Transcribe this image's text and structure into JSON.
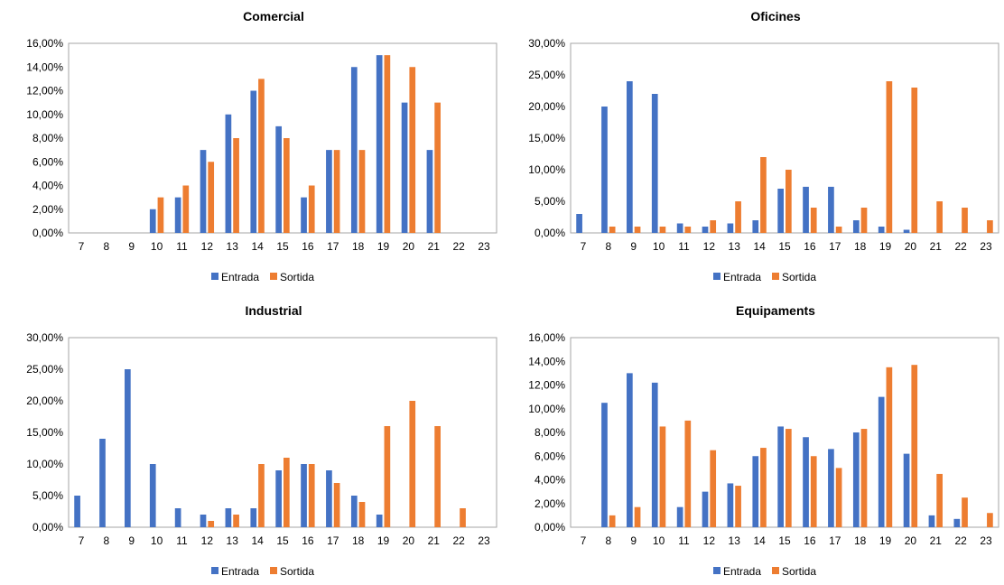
{
  "legend": {
    "entrada": "Entrada",
    "sortida": "Sortida"
  },
  "colors": {
    "entrada": "#4472C4",
    "sortida": "#ED7D31"
  },
  "chart_data": [
    {
      "type": "bar",
      "title": "Comercial",
      "categories": [
        "7",
        "8",
        "9",
        "10",
        "11",
        "12",
        "13",
        "14",
        "15",
        "16",
        "17",
        "18",
        "19",
        "20",
        "21",
        "22",
        "23"
      ],
      "ylim": [
        0,
        16
      ],
      "yticks": [
        0,
        2,
        4,
        6,
        8,
        10,
        12,
        14,
        16
      ],
      "ytick_labels": [
        "0,00%",
        "2,00%",
        "4,00%",
        "6,00%",
        "8,00%",
        "10,00%",
        "12,00%",
        "14,00%",
        "16,00%"
      ],
      "grid": false,
      "legend": "bottom",
      "series": [
        {
          "name": "Entrada",
          "values": [
            0,
            0,
            0,
            2,
            3,
            7,
            10,
            12,
            9,
            3,
            7,
            14,
            15,
            11,
            7,
            0,
            0
          ]
        },
        {
          "name": "Sortida",
          "values": [
            0,
            0,
            0,
            3,
            4,
            6,
            8,
            13,
            8,
            4,
            7,
            7,
            15,
            14,
            11,
            0,
            0
          ]
        }
      ]
    },
    {
      "type": "bar",
      "title": "Oficines",
      "categories": [
        "7",
        "8",
        "9",
        "10",
        "11",
        "12",
        "13",
        "14",
        "15",
        "16",
        "17",
        "18",
        "19",
        "20",
        "21",
        "22",
        "23"
      ],
      "ylim": [
        0,
        30
      ],
      "yticks": [
        0,
        5,
        10,
        15,
        20,
        25,
        30
      ],
      "ytick_labels": [
        "0,00%",
        "5,00%",
        "10,00%",
        "15,00%",
        "20,00%",
        "25,00%",
        "30,00%"
      ],
      "grid": false,
      "legend": "bottom",
      "series": [
        {
          "name": "Entrada",
          "values": [
            3,
            20,
            24,
            22,
            1.5,
            1,
            1.5,
            2,
            7,
            7.3,
            7.3,
            2,
            1,
            0.5,
            0,
            0,
            0
          ]
        },
        {
          "name": "Sortida",
          "values": [
            0,
            1,
            1,
            1,
            1,
            2,
            5,
            12,
            10,
            4,
            1,
            4,
            24,
            23,
            5,
            4,
            2
          ]
        }
      ]
    },
    {
      "type": "bar",
      "title": "Industrial",
      "categories": [
        "7",
        "8",
        "9",
        "10",
        "11",
        "12",
        "13",
        "14",
        "15",
        "16",
        "17",
        "18",
        "19",
        "20",
        "21",
        "22",
        "23"
      ],
      "ylim": [
        0,
        30
      ],
      "yticks": [
        0,
        5,
        10,
        15,
        20,
        25,
        30
      ],
      "ytick_labels": [
        "0,00%",
        "5,00%",
        "10,00%",
        "15,00%",
        "20,00%",
        "25,00%",
        "30,00%"
      ],
      "grid": false,
      "legend": "bottom",
      "series": [
        {
          "name": "Entrada",
          "values": [
            5,
            14,
            25,
            10,
            3,
            2,
            3,
            3,
            9,
            10,
            9,
            5,
            2,
            0,
            0,
            0,
            0
          ]
        },
        {
          "name": "Sortida",
          "values": [
            0,
            0,
            0,
            0,
            0,
            1,
            2,
            10,
            11,
            10,
            7,
            4,
            16,
            20,
            16,
            3,
            0
          ]
        }
      ]
    },
    {
      "type": "bar",
      "title": "Equipaments",
      "categories": [
        "7",
        "8",
        "9",
        "10",
        "11",
        "12",
        "13",
        "14",
        "15",
        "16",
        "17",
        "18",
        "19",
        "20",
        "21",
        "22",
        "23"
      ],
      "ylim": [
        0,
        16
      ],
      "yticks": [
        0,
        2,
        4,
        6,
        8,
        10,
        12,
        14,
        16
      ],
      "ytick_labels": [
        "0,00%",
        "2,00%",
        "4,00%",
        "6,00%",
        "8,00%",
        "10,00%",
        "12,00%",
        "14,00%",
        "16,00%"
      ],
      "grid": false,
      "legend": "bottom",
      "series": [
        {
          "name": "Entrada",
          "values": [
            0,
            10.5,
            13,
            12.2,
            1.7,
            3,
            3.7,
            6,
            8.5,
            7.6,
            6.6,
            8,
            11,
            6.2,
            1,
            0.7,
            0
          ]
        },
        {
          "name": "Sortida",
          "values": [
            0,
            1,
            1.7,
            8.5,
            9,
            6.5,
            3.5,
            6.7,
            8.3,
            6,
            5,
            8.3,
            13.5,
            13.7,
            4.5,
            2.5,
            1.2
          ]
        }
      ]
    }
  ]
}
